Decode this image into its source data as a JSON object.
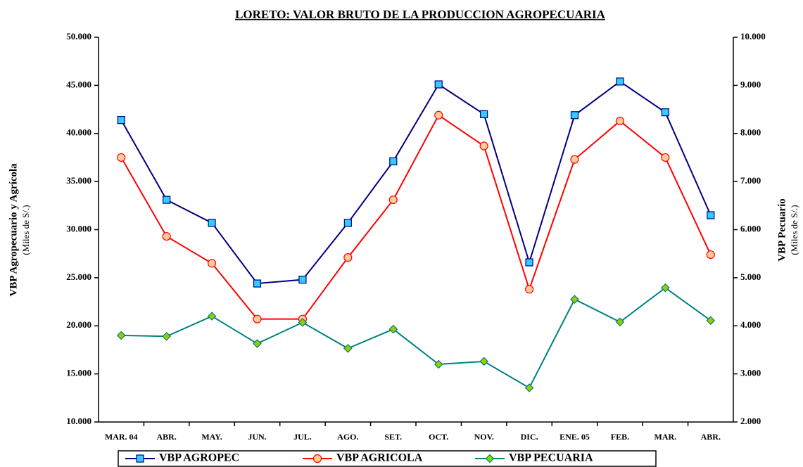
{
  "chart_data": {
    "type": "line",
    "title": "LORETO: VALOR BRUTO DE LA PRODUCCION AGROPECUARIA",
    "y_label": "VBP Agropecuario y Agrícola",
    "y_label_sub": "(Miles de S/.)",
    "y2_label": "VBP Pecuario",
    "y2_label_sub": "(Miles de S/.)",
    "categories": [
      "MAR. 04",
      "ABR.",
      "MAY.",
      "JUN.",
      "JUL.",
      "AGO.",
      "SET.",
      "OCT.",
      "NOV.",
      "DIC.",
      "ENE. 05",
      "FEB.",
      "MAR.",
      "ABR."
    ],
    "ylim": [
      10000,
      50000
    ],
    "yticks": [
      {
        "value": 10000,
        "label": "10.000"
      },
      {
        "value": 15000,
        "label": "15.000"
      },
      {
        "value": 20000,
        "label": "20.000"
      },
      {
        "value": 25000,
        "label": "25.000"
      },
      {
        "value": 30000,
        "label": "30.000"
      },
      {
        "value": 35000,
        "label": "35.000"
      },
      {
        "value": 40000,
        "label": "40.000"
      },
      {
        "value": 45000,
        "label": "45.000"
      },
      {
        "value": 50000,
        "label": "50.000"
      }
    ],
    "y2lim": [
      2000,
      10000
    ],
    "y2ticks": [
      {
        "value": 2000,
        "label": "2.000"
      },
      {
        "value": 3000,
        "label": "3.000"
      },
      {
        "value": 4000,
        "label": "4.000"
      },
      {
        "value": 5000,
        "label": "5.000"
      },
      {
        "value": 6000,
        "label": "6.000"
      },
      {
        "value": 7000,
        "label": "7.000"
      },
      {
        "value": 8000,
        "label": "8.000"
      },
      {
        "value": 9000,
        "label": "9.000"
      },
      {
        "value": 10000,
        "label": "10.000"
      }
    ],
    "legend": "bottom",
    "series": [
      {
        "name": "VBP AGROPEC",
        "color": "#000080",
        "marker": "square",
        "marker_fill": "#33ccff",
        "values": [
          41400,
          33100,
          30700,
          24400,
          24800,
          30700,
          37100,
          45100,
          42000,
          26600,
          41900,
          45400,
          42200,
          31500
        ]
      },
      {
        "name": "VBP AGRICOLA",
        "color": "#ff0000",
        "marker": "circle",
        "marker_fill": "#ffcc99",
        "values": [
          37500,
          29300,
          26500,
          20700,
          20700,
          27100,
          33100,
          41900,
          38700,
          23800,
          37300,
          41300,
          37500,
          27400
        ]
      },
      {
        "name": "VBP PECUARIA",
        "color": "#008080",
        "marker": "diamond",
        "marker_fill": "#99cc00",
        "axis": "y2",
        "values": [
          3800,
          3780,
          4200,
          3630,
          4070,
          3530,
          3930,
          3200,
          3260,
          2710,
          4550,
          4080,
          4790,
          4110
        ]
      }
    ]
  }
}
